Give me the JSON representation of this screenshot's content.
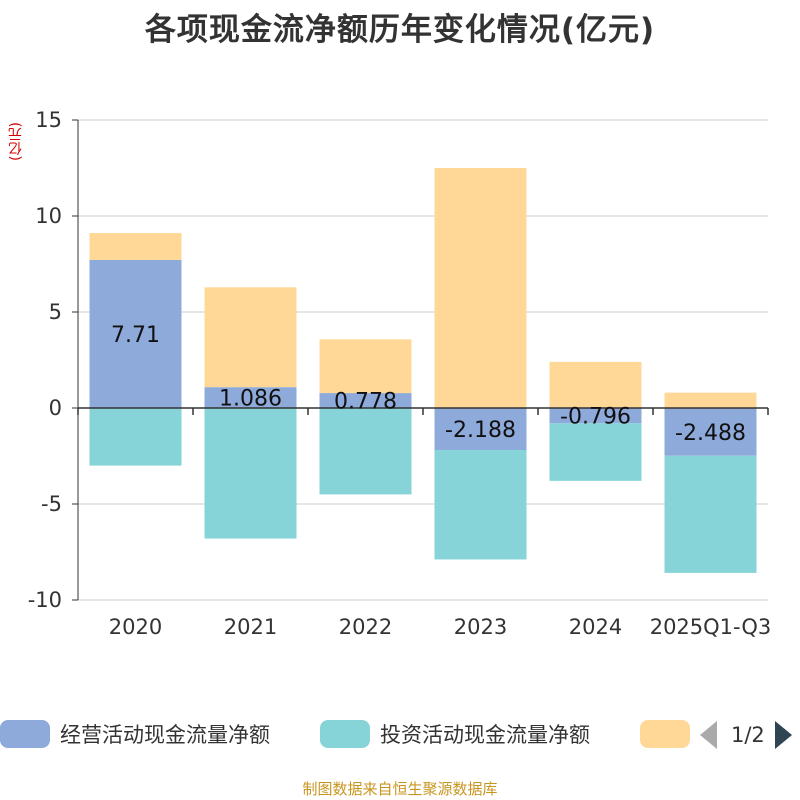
{
  "title": "各项现金流净额历年变化情况(亿元)",
  "unit_label": "(亿元)",
  "source": "制图数据来自恒生聚源数据库",
  "pager": {
    "text": "1/2"
  },
  "colors": {
    "operating": "#8eaadb",
    "investing": "#86d4d7",
    "financing": "#ffd898",
    "grid": "#cccccc",
    "axis": "#333333"
  },
  "chart_data": {
    "type": "bar",
    "stacked": true,
    "title": "各项现金流净额历年变化情况(亿元)",
    "ylabel": "(亿元)",
    "ylim": [
      -10,
      15
    ],
    "yticks": [
      15,
      10,
      5,
      0,
      -5,
      -10
    ],
    "categories": [
      "2020",
      "2021",
      "2022",
      "2023",
      "2024",
      "2025Q1-Q3"
    ],
    "series": [
      {
        "name": "经营活动现金流量净额",
        "color": "#8eaadb",
        "values": [
          7.71,
          1.086,
          0.778,
          -2.188,
          -0.796,
          -2.488
        ],
        "labels": [
          "7.71",
          "1.086",
          "0.778",
          "-2.188",
          "-0.796",
          "-2.488"
        ]
      },
      {
        "name": "投资活动现金流量净额",
        "color": "#86d4d7",
        "values": [
          -3.0,
          -6.8,
          -4.5,
          -5.7,
          -3.0,
          -6.1
        ]
      },
      {
        "name": "",
        "color": "#ffd898",
        "values": [
          1.4,
          5.2,
          2.8,
          12.5,
          2.4,
          0.8
        ]
      }
    ]
  },
  "legend": [
    {
      "label": "经营活动现金流量净额"
    },
    {
      "label": "投资活动现金流量净额"
    },
    {
      "label": ""
    }
  ]
}
